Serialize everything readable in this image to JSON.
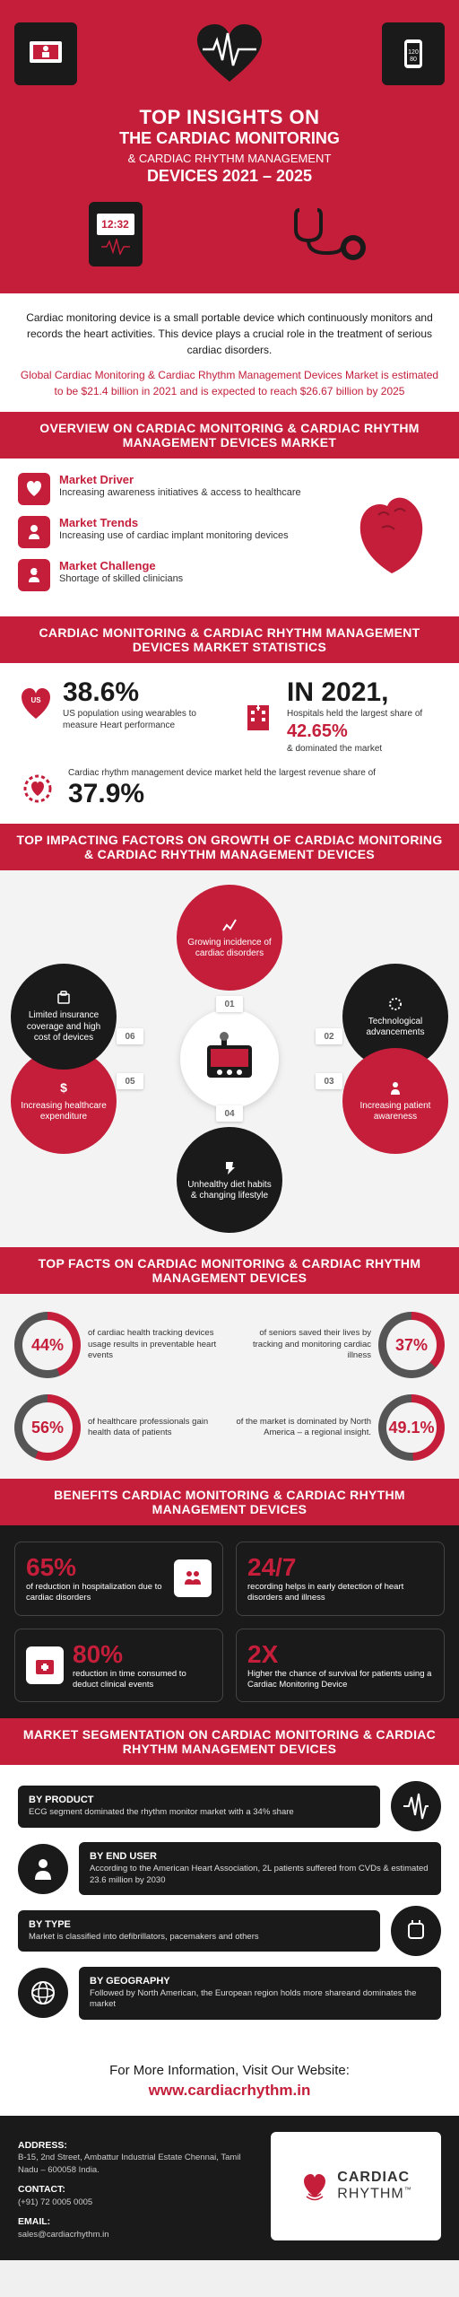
{
  "hero": {
    "title1": "TOP INSIGHTS ON",
    "title2": "THE CARDIAC MONITORING",
    "title3": "& CARDIAC RHYTHM MANAGEMENT",
    "title4": "DEVICES 2021 – 2025",
    "phone_time": "12:32",
    "bg_color": "#c41e3a"
  },
  "intro": {
    "black": "Cardiac monitoring device is a small portable device which continuously monitors and records the heart activities. This device plays a crucial role in the treatment of serious cardiac disorders.",
    "red": "Global Cardiac Monitoring & Cardiac Rhythm Management Devices Market is estimated to be $21.4 billion in 2021 and is expected to reach $26.67 billion by 2025"
  },
  "overview": {
    "header": "OVERVIEW ON CARDIAC MONITORING & CARDIAC RHYTHM MANAGEMENT DEVICES MARKET",
    "items": [
      {
        "head": "Market Driver",
        "sub": "Increasing awareness initiatives & access to healthcare"
      },
      {
        "head": "Market Trends",
        "sub": "Increasing use of cardiac implant monitoring devices"
      },
      {
        "head": "Market Challenge",
        "sub": "Shortage of skilled clinicians"
      }
    ]
  },
  "stats": {
    "header": "CARDIAC MONITORING & CARDIAC RHYTHM MANAGEMENT DEVICES MARKET STATISTICS",
    "s1_pct": "38.6%",
    "s1_txt": "US population using wearables to measure Heart performance",
    "s2_year": "IN 2021,",
    "s2_txt_a": "Hospitals held the largest share of",
    "s2_pct": "42.65%",
    "s2_txt_b": "& dominated the market",
    "s3_txt": "Cardiac rhythm management device market held the largest revenue share of",
    "s3_pct": "37.9%"
  },
  "factors": {
    "header": "TOP IMPACTING FACTORS ON GROWTH OF CARDIAC MONITORING & CARDIAC RHYTHM MANAGEMENT DEVICES",
    "items": [
      {
        "num": "01",
        "txt": "Growing incidence of cardiac disorders",
        "color": "red"
      },
      {
        "num": "02",
        "txt": "Technological advancements",
        "color": "black"
      },
      {
        "num": "03",
        "txt": "Increasing patient awareness",
        "color": "red"
      },
      {
        "num": "04",
        "txt": "Unhealthy diet habits & changing lifestyle",
        "color": "black"
      },
      {
        "num": "05",
        "txt": "Increasing healthcare expenditure",
        "color": "red"
      },
      {
        "num": "06",
        "txt": "Limited insurance coverage and high cost of devices",
        "color": "black"
      }
    ]
  },
  "facts": {
    "header": "TOP FACTS ON CARDIAC MONITORING & CARDIAC RHYTHM MANAGEMENT DEVICES",
    "items": [
      {
        "pct": "44%",
        "deg": 158,
        "txt": "of cardiac health tracking devices usage results in preventable heart events"
      },
      {
        "pct": "37%",
        "deg": 133,
        "txt": "of seniors saved their lives by tracking and monitoring cardiac illness"
      },
      {
        "pct": "56%",
        "deg": 202,
        "txt": "of healthcare professionals gain health data of patients"
      },
      {
        "pct": "49.1%",
        "deg": 177,
        "txt": "of the market is dominated by North America – a regional insight."
      }
    ],
    "ring_fg": "#c41e3a",
    "ring_bg": "#555555"
  },
  "benefits": {
    "header": "BENEFITS CARDIAC MONITORING & CARDIAC RHYTHM MANAGEMENT DEVICES",
    "items": [
      {
        "big": "65%",
        "txt": "of reduction in hospitalization due to cardiac disorders",
        "icon": false
      },
      {
        "big": "24/7",
        "txt": "recording helps in early detection of heart disorders and illness",
        "icon": false
      },
      {
        "big": "80%",
        "txt": "reduction in time consumed to deduct clinical events",
        "icon": true
      },
      {
        "big": "2X",
        "txt": "Higher the chance of survival for patients using a Cardiac Monitoring Device",
        "icon": false
      }
    ]
  },
  "segmentation": {
    "header": "MARKET SEGMENTATION ON CARDIAC MONITORING & CARDIAC RHYTHM MANAGEMENT DEVICES",
    "rows": [
      {
        "head": "BY PRODUCT",
        "sub": "ECG segment dominated the rhythm monitor market with a 34% share",
        "side": "left"
      },
      {
        "head": "BY END USER",
        "sub": "According to the American Heart Association, 2L patients suffered from CVDs & estimated 23.6 million by 2030",
        "side": "right"
      },
      {
        "head": "BY TYPE",
        "sub": "Market is classified into defibrillators, pacemakers and others",
        "side": "left"
      },
      {
        "head": "BY GEOGRAPHY",
        "sub": "Followed by North American, the European region holds more shareand dominates the market",
        "side": "right"
      }
    ]
  },
  "more_info": {
    "txt": "For More Information, Visit Our Website:",
    "url": "www.cardiacrhythm.in"
  },
  "footer": {
    "address_label": "ADDRESS:",
    "address": "B-15, 2nd Street, Ambattur Industrial Estate Chennai, Tamil Nadu – 600058 India.",
    "contact_label": "CONTACT:",
    "contact": "(+91) 72 0005 0005",
    "email_label": "EMAIL:",
    "email": "sales@cardiacrhythm.in",
    "logo_a": "CARDIAC",
    "logo_b": "RHYTHM"
  },
  "colors": {
    "primary_red": "#c41e3a",
    "dark": "#1a1a1a",
    "light_bg": "#f3f3f3"
  }
}
